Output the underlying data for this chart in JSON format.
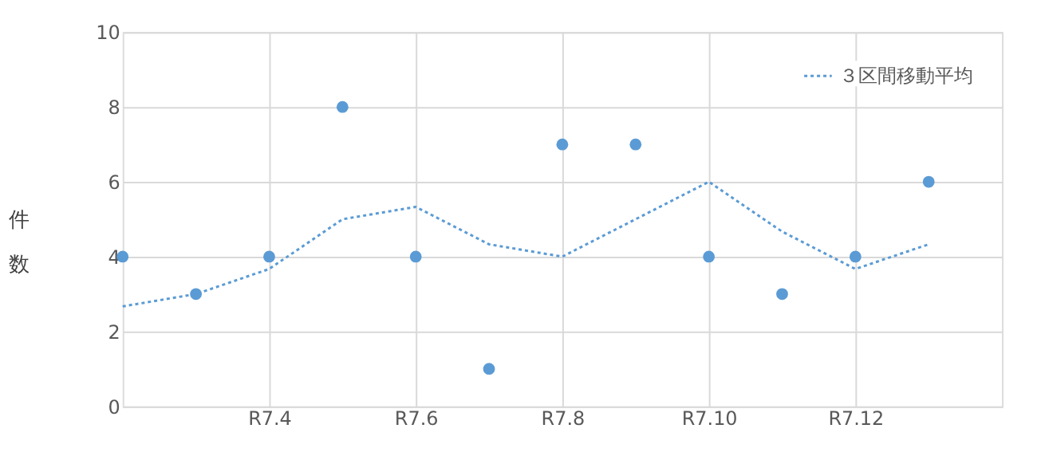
{
  "chart_data": {
    "type": "scatter",
    "ylabel": "件数",
    "categories": [
      null,
      null,
      "R7.4",
      null,
      "R7.6",
      null,
      "R7.8",
      null,
      "R7.10",
      null,
      "R7.12",
      null
    ],
    "series": [
      {
        "color": "#5b9bd5",
        "marker": "circle",
        "values": [
          4,
          3,
          4,
          8,
          4,
          1,
          7,
          7,
          4,
          3,
          4,
          6
        ]
      },
      {
        "type": "line",
        "name": "３区間移動平均",
        "color": "#5b9bd5",
        "line_style": "dotted",
        "marker": "none",
        "values": [
          2.67,
          3,
          3.67,
          5,
          5.33,
          4.33,
          4,
          5,
          6,
          4.67,
          3.67,
          4.33
        ]
      }
    ],
    "ylim": [
      0,
      10
    ],
    "yticks": [
      0,
      2,
      4,
      6,
      8,
      10
    ],
    "grid": true,
    "legend": "top right"
  }
}
